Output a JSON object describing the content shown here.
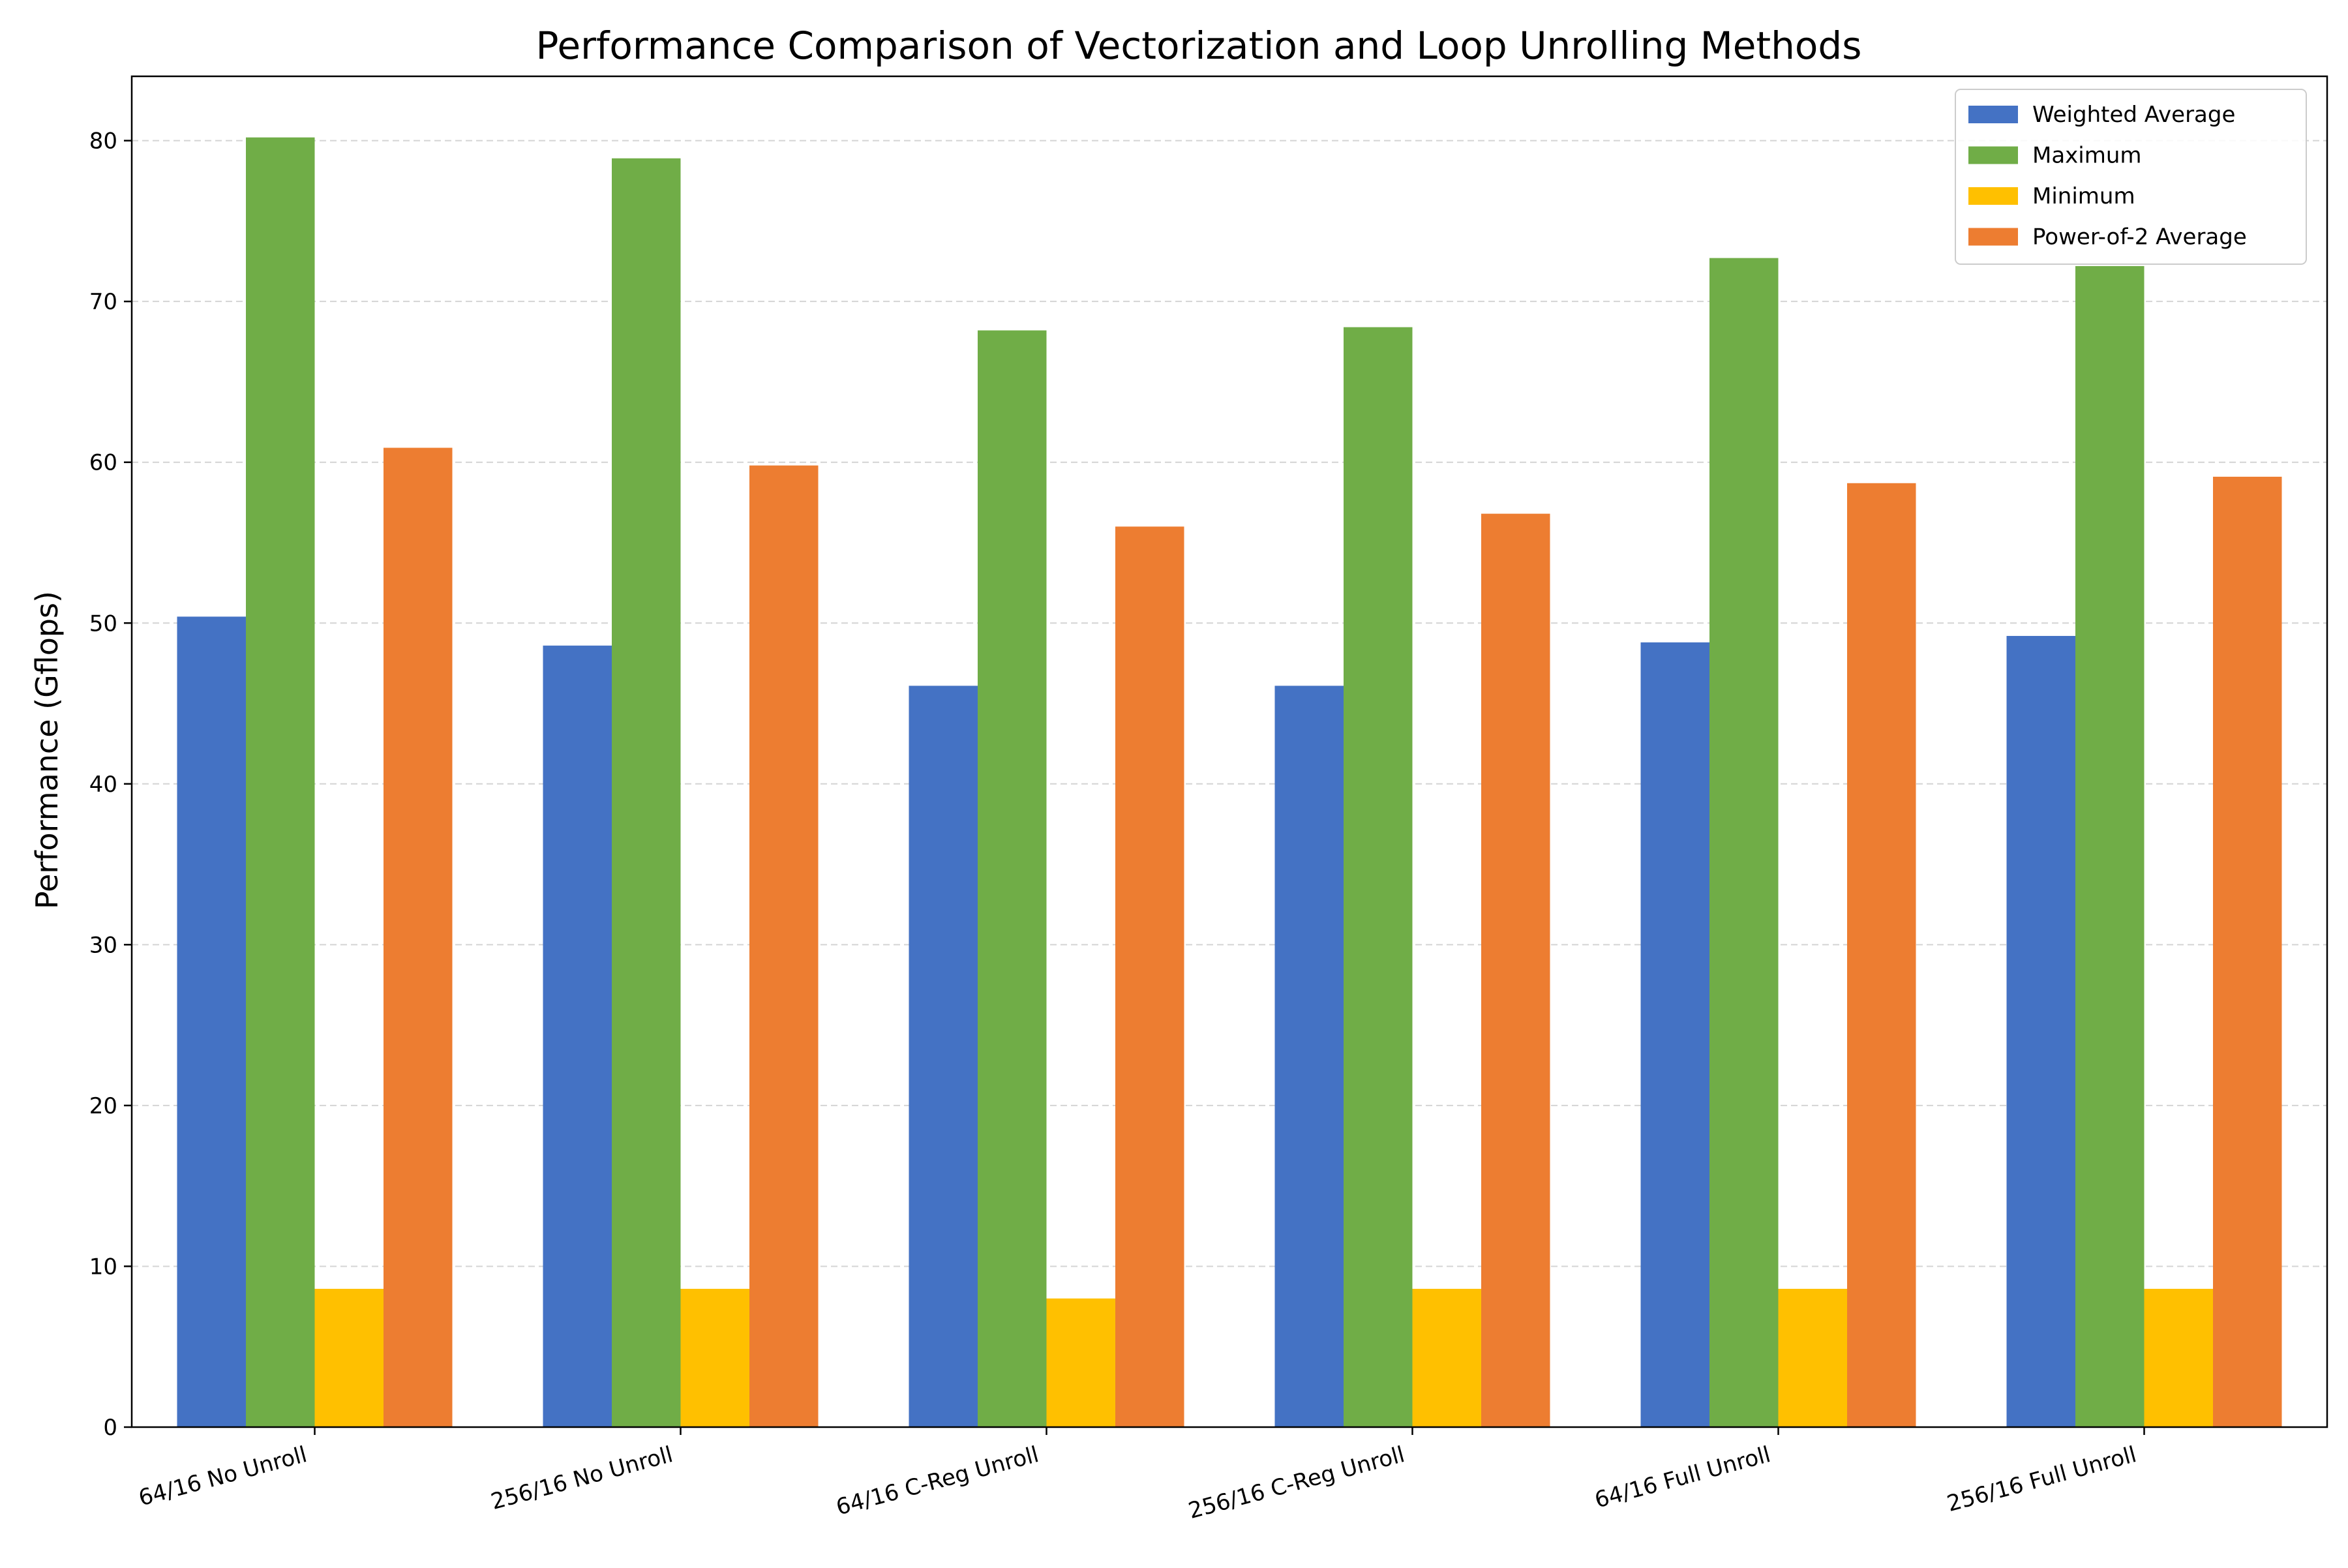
{
  "chart_data": {
    "type": "bar",
    "title": "Performance Comparison of Vectorization and Loop Unrolling Methods",
    "xlabel": "",
    "ylabel": "Performance (Gflops)",
    "ylim": [
      0,
      84
    ],
    "yticks": [
      0,
      10,
      20,
      30,
      40,
      50,
      60,
      70,
      80
    ],
    "grid": "horizontal dashed",
    "legend_position": "top-right",
    "categories": [
      "64/16 No Unroll",
      "256/16 No Unroll",
      "64/16 C-Reg Unroll",
      "256/16 C-Reg Unroll",
      "64/16 Full Unroll",
      "256/16 Full Unroll"
    ],
    "series": [
      {
        "name": "Weighted Average",
        "color": "#4472C4",
        "values": [
          50.4,
          48.6,
          46.1,
          46.1,
          48.8,
          49.2
        ]
      },
      {
        "name": "Maximum",
        "color": "#70AD47",
        "values": [
          80.2,
          78.9,
          68.2,
          68.4,
          72.7,
          72.2
        ]
      },
      {
        "name": "Minimum",
        "color": "#FFC000",
        "values": [
          8.6,
          8.6,
          8.0,
          8.6,
          8.6,
          8.6
        ]
      },
      {
        "name": "Power-of-2 Average",
        "color": "#ED7D31",
        "values": [
          60.9,
          59.8,
          56.0,
          56.8,
          58.7,
          59.1
        ]
      }
    ]
  }
}
